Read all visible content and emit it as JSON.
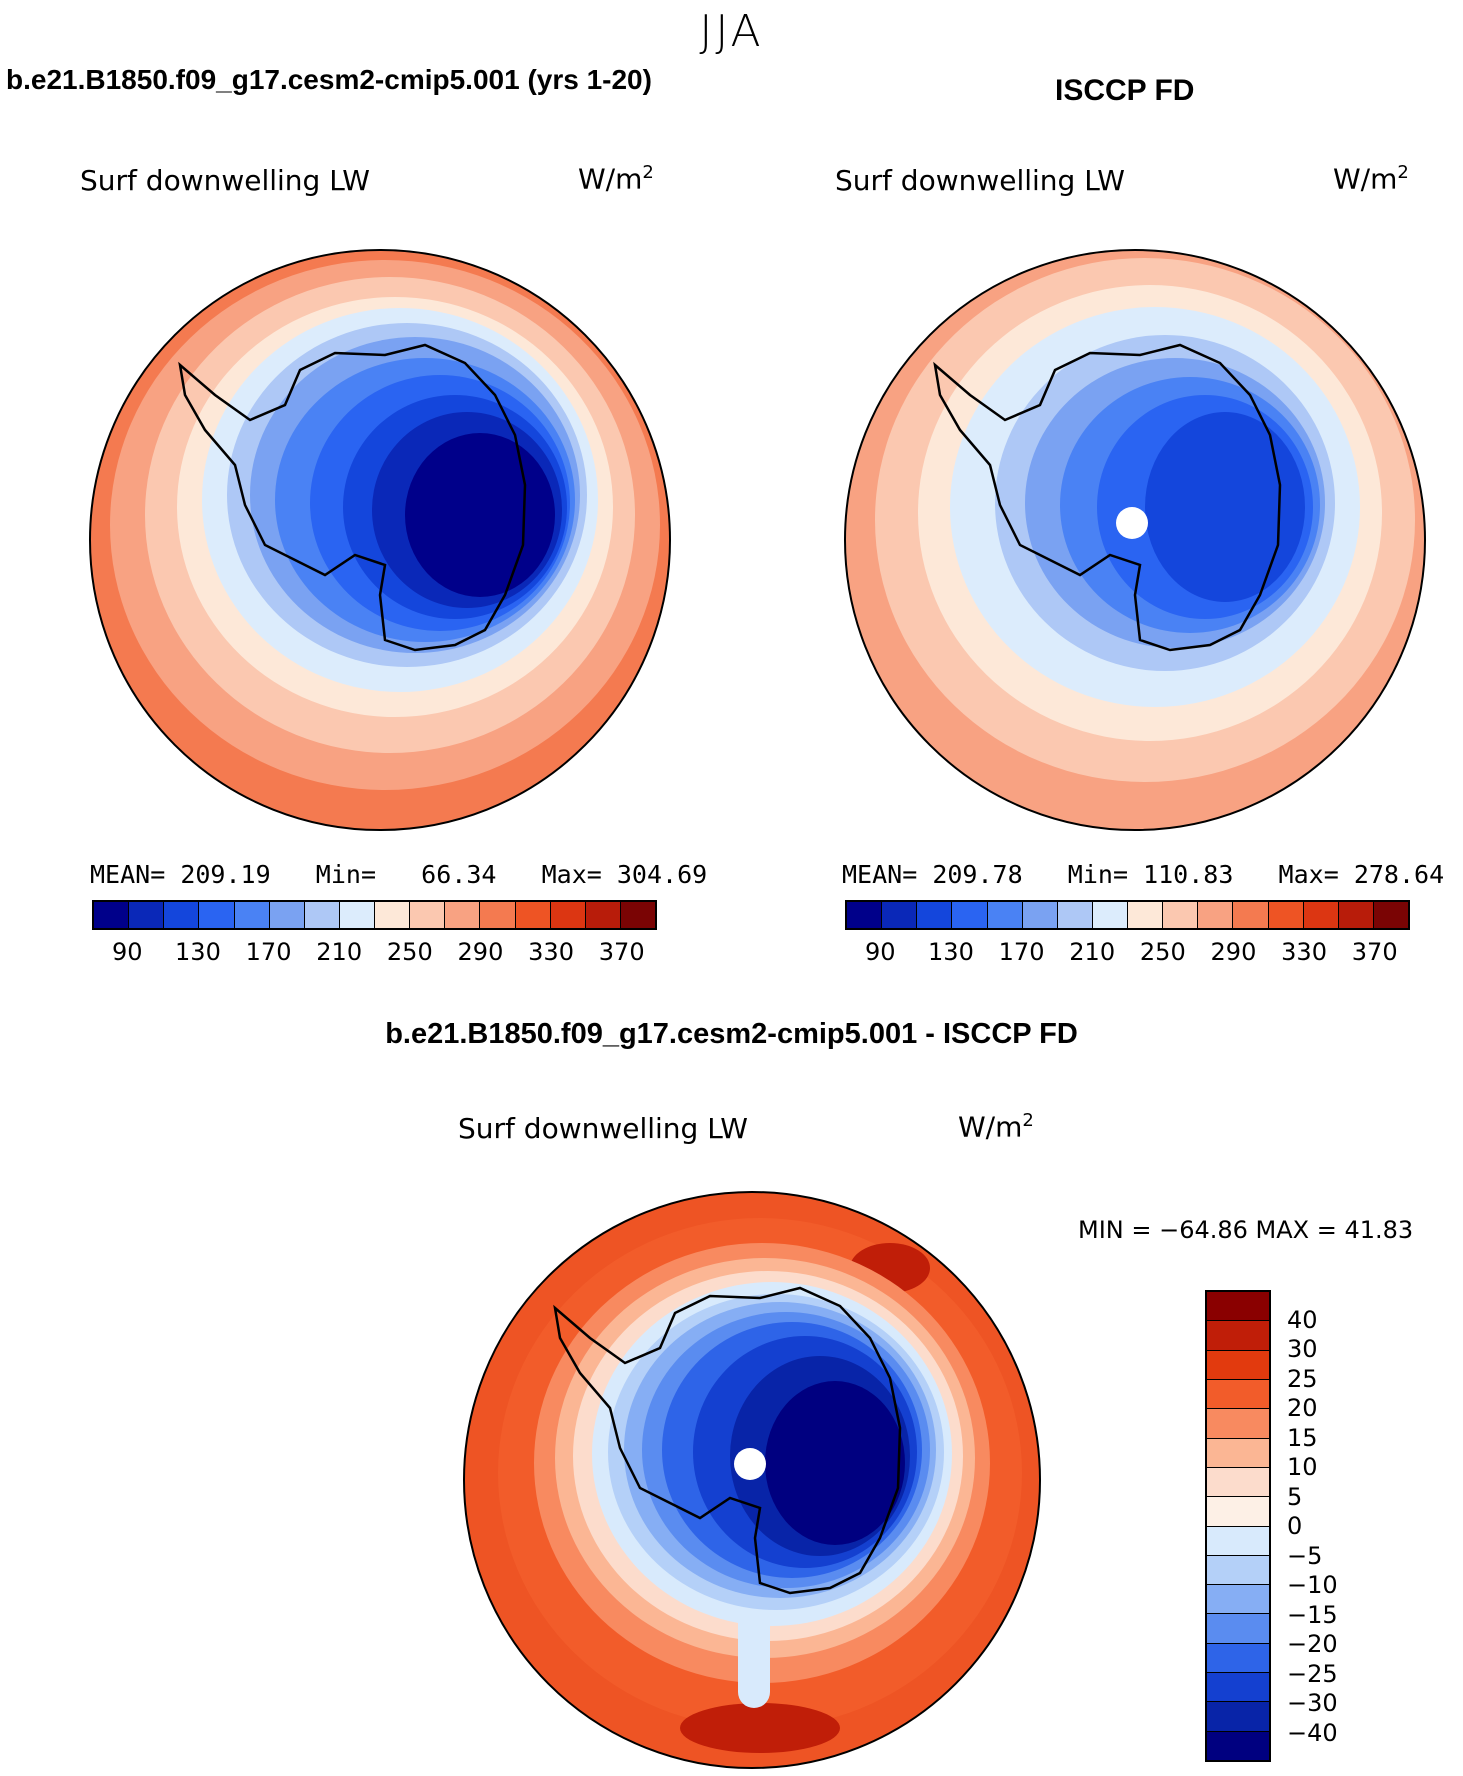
{
  "season": "JJA",
  "colors": {
    "ocean": "#000000",
    "coast": "#000000"
  },
  "panels": [
    {
      "id": "model",
      "title": "b.e21.B1850.f09_g17.cesm2-cmip5.001 (yrs 1-20)",
      "variable": "Surf downwelling LW",
      "units_base": "W/m",
      "units_exp": "2",
      "stats": {
        "mean_label": "MEAN=",
        "mean": "209.19",
        "min_label": "Min=",
        "min": "66.34",
        "max_label": "Max=",
        "max": "304.69"
      },
      "colorbar_ticks": [
        "90",
        "130",
        "170",
        "210",
        "250",
        "290",
        "330",
        "370"
      ],
      "colorbar_colors": [
        "#00008a",
        "#0a28b8",
        "#1446dc",
        "#2a64f2",
        "#4a82f4",
        "#7aa2f2",
        "#aec8f6",
        "#dcecfc",
        "#fde8d8",
        "#fbc8b0",
        "#f8a282",
        "#f47a50",
        "#ee5424",
        "#dc3612",
        "#b81c0a",
        "#7a0404"
      ]
    },
    {
      "id": "obs",
      "title": "ISCCP FD",
      "variable": "Surf downwelling LW",
      "units_base": "W/m",
      "units_exp": "2",
      "stats": {
        "mean_label": "MEAN=",
        "mean": "209.78",
        "min_label": "Min=",
        "min": "110.83",
        "max_label": "Max=",
        "max": "278.64"
      },
      "colorbar_ticks": [
        "90",
        "130",
        "170",
        "210",
        "250",
        "290",
        "330",
        "370"
      ],
      "colorbar_colors": [
        "#00008a",
        "#0a28b8",
        "#1446dc",
        "#2a64f2",
        "#4a82f4",
        "#7aa2f2",
        "#aec8f6",
        "#dcecfc",
        "#fde8d8",
        "#fbc8b0",
        "#f8a282",
        "#f47a50",
        "#ee5424",
        "#dc3612",
        "#b81c0a",
        "#7a0404"
      ]
    }
  ],
  "diff": {
    "title": "b.e21.B1850.f09_g17.cesm2-cmip5.001 - ISCCP FD",
    "variable": "Surf downwelling LW",
    "units_base": "W/m",
    "units_exp": "2",
    "minmax": "MIN = −64.86 MAX =  41.83",
    "colorbar_labels": [
      "40",
      "30",
      "25",
      "20",
      "15",
      "10",
      "5",
      "0",
      "−5",
      "−10",
      "−15",
      "−20",
      "−25",
      "−30",
      "−40"
    ],
    "colorbar_colors": [
      "#8a0000",
      "#c01e08",
      "#e23a0e",
      "#f25c2a",
      "#f88a60",
      "#fbb694",
      "#fcdccc",
      "#fdf0e6",
      "#d8eafc",
      "#b4d0f8",
      "#86aef4",
      "#5a8cf0",
      "#2e64e8",
      "#1440d0",
      "#0824a8",
      "#000080"
    ]
  }
}
